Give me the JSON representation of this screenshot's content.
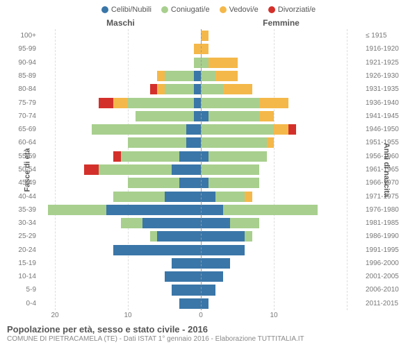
{
  "legend": [
    {
      "label": "Celibi/Nubili",
      "color": "#3a76a8"
    },
    {
      "label": "Coniugati/e",
      "color": "#a8cf8e"
    },
    {
      "label": "Vedovi/e",
      "color": "#f4b84a"
    },
    {
      "label": "Divorziati/e",
      "color": "#d4302b"
    }
  ],
  "header_male": "Maschi",
  "header_female": "Femmine",
  "y_left_title": "Fasce di età",
  "y_right_title": "Anni di nascita",
  "xmax": 22,
  "xticks_male": [
    20,
    10,
    0
  ],
  "xticks_female": [
    0,
    10
  ],
  "title": "Popolazione per età, sesso e stato civile - 2016",
  "subtitle": "COMUNE DI PIETRACAMELA (TE) - Dati ISTAT 1° gennaio 2016 - Elaborazione TUTTITALIA.IT",
  "colors": {
    "background": "#ffffff",
    "grid": "#dddddd",
    "center": "#999999",
    "text": "#555555",
    "text_muted": "#777777"
  },
  "rows": [
    {
      "age": "100+",
      "birth": "≤ 1915",
      "m": [
        0,
        0,
        0,
        0
      ],
      "f": [
        0,
        0,
        1,
        0
      ]
    },
    {
      "age": "95-99",
      "birth": "1916-1920",
      "m": [
        0,
        0,
        1,
        0
      ],
      "f": [
        0,
        0,
        1,
        0
      ]
    },
    {
      "age": "90-94",
      "birth": "1921-1925",
      "m": [
        0,
        1,
        0,
        0
      ],
      "f": [
        0,
        1,
        4,
        0
      ]
    },
    {
      "age": "85-89",
      "birth": "1926-1930",
      "m": [
        1,
        4,
        1,
        0
      ],
      "f": [
        0,
        2,
        3,
        0
      ]
    },
    {
      "age": "80-84",
      "birth": "1931-1935",
      "m": [
        1,
        4,
        1,
        1
      ],
      "f": [
        0,
        3,
        4,
        0
      ]
    },
    {
      "age": "75-79",
      "birth": "1936-1940",
      "m": [
        1,
        9,
        2,
        2
      ],
      "f": [
        0,
        8,
        4,
        0
      ]
    },
    {
      "age": "70-74",
      "birth": "1941-1945",
      "m": [
        1,
        8,
        0,
        0
      ],
      "f": [
        1,
        7,
        2,
        0
      ]
    },
    {
      "age": "65-69",
      "birth": "1946-1950",
      "m": [
        2,
        13,
        0,
        0
      ],
      "f": [
        0,
        10,
        2,
        1
      ]
    },
    {
      "age": "60-64",
      "birth": "1951-1955",
      "m": [
        2,
        8,
        0,
        0
      ],
      "f": [
        0,
        9,
        1,
        0
      ]
    },
    {
      "age": "55-59",
      "birth": "1956-1960",
      "m": [
        3,
        8,
        0,
        1
      ],
      "f": [
        1,
        8,
        0,
        0
      ]
    },
    {
      "age": "50-54",
      "birth": "1961-1965",
      "m": [
        4,
        10,
        0,
        2
      ],
      "f": [
        0,
        8,
        0,
        0
      ]
    },
    {
      "age": "45-49",
      "birth": "1966-1970",
      "m": [
        3,
        7,
        0,
        0
      ],
      "f": [
        1,
        7,
        0,
        0
      ]
    },
    {
      "age": "40-44",
      "birth": "1971-1975",
      "m": [
        5,
        7,
        0,
        0
      ],
      "f": [
        2,
        4,
        1,
        0
      ]
    },
    {
      "age": "35-39",
      "birth": "1976-1980",
      "m": [
        13,
        8,
        0,
        0
      ],
      "f": [
        3,
        13,
        0,
        0
      ]
    },
    {
      "age": "30-34",
      "birth": "1981-1985",
      "m": [
        8,
        3,
        0,
        0
      ],
      "f": [
        4,
        4,
        0,
        0
      ]
    },
    {
      "age": "25-29",
      "birth": "1986-1990",
      "m": [
        6,
        1,
        0,
        0
      ],
      "f": [
        6,
        1,
        0,
        0
      ]
    },
    {
      "age": "20-24",
      "birth": "1991-1995",
      "m": [
        12,
        0,
        0,
        0
      ],
      "f": [
        6,
        0,
        0,
        0
      ]
    },
    {
      "age": "15-19",
      "birth": "1996-2000",
      "m": [
        4,
        0,
        0,
        0
      ],
      "f": [
        4,
        0,
        0,
        0
      ]
    },
    {
      "age": "10-14",
      "birth": "2001-2005",
      "m": [
        5,
        0,
        0,
        0
      ],
      "f": [
        3,
        0,
        0,
        0
      ]
    },
    {
      "age": "5-9",
      "birth": "2006-2010",
      "m": [
        4,
        0,
        0,
        0
      ],
      "f": [
        2,
        0,
        0,
        0
      ]
    },
    {
      "age": "0-4",
      "birth": "2011-2015",
      "m": [
        3,
        0,
        0,
        0
      ],
      "f": [
        1,
        0,
        0,
        0
      ]
    }
  ]
}
